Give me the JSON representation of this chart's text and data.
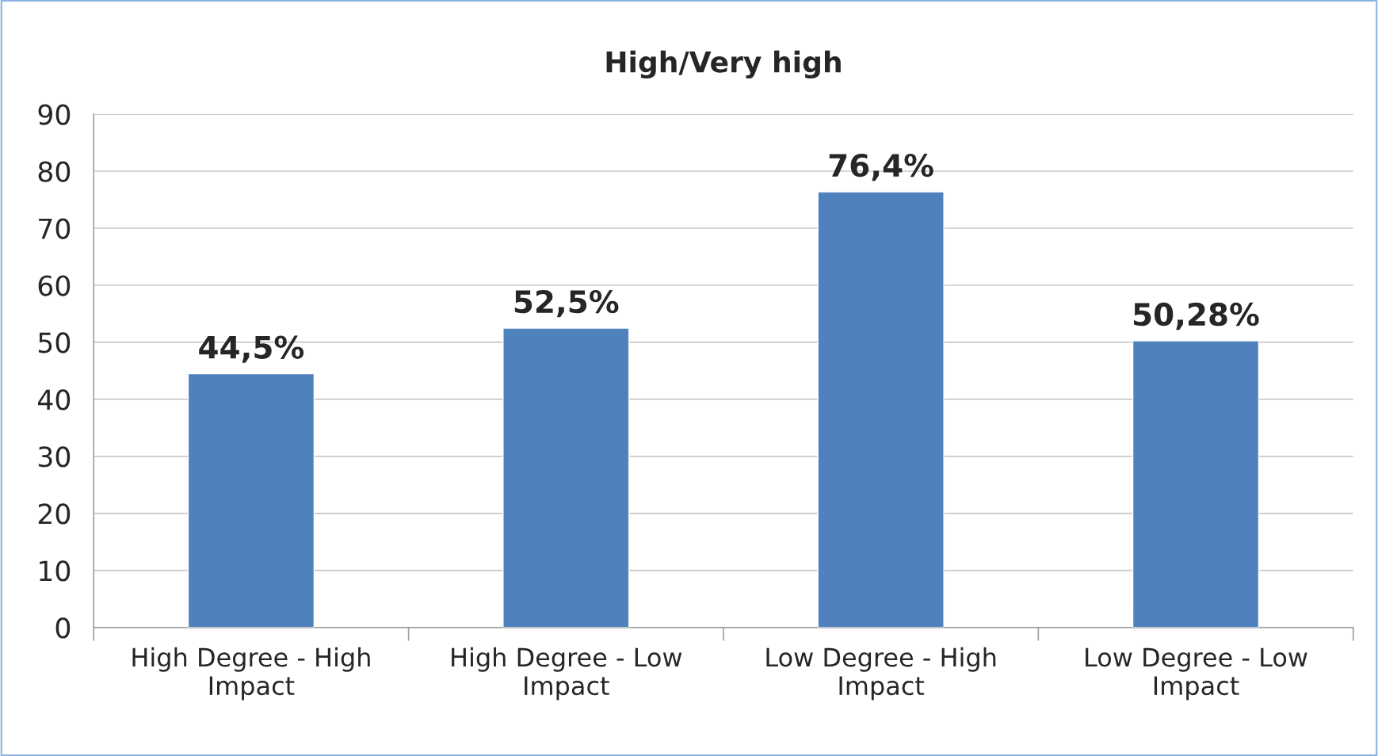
{
  "chart_data": {
    "type": "bar",
    "title": "High/Very high",
    "categories": [
      "High Degree - High Impact",
      "High Degree - Low Impact",
      "Low Degree - High Impact",
      "Low Degree - Low Impact"
    ],
    "values": [
      44.5,
      52.5,
      76.4,
      50.28
    ],
    "value_labels": [
      "44,5%",
      "52,5%",
      "76,4%",
      "50,28%"
    ],
    "color": "#4f81bd",
    "ylim": [
      0,
      90
    ],
    "yticks": [
      0,
      10,
      20,
      30,
      40,
      50,
      60,
      70,
      80,
      90
    ],
    "grid": "y",
    "legend": false
  }
}
